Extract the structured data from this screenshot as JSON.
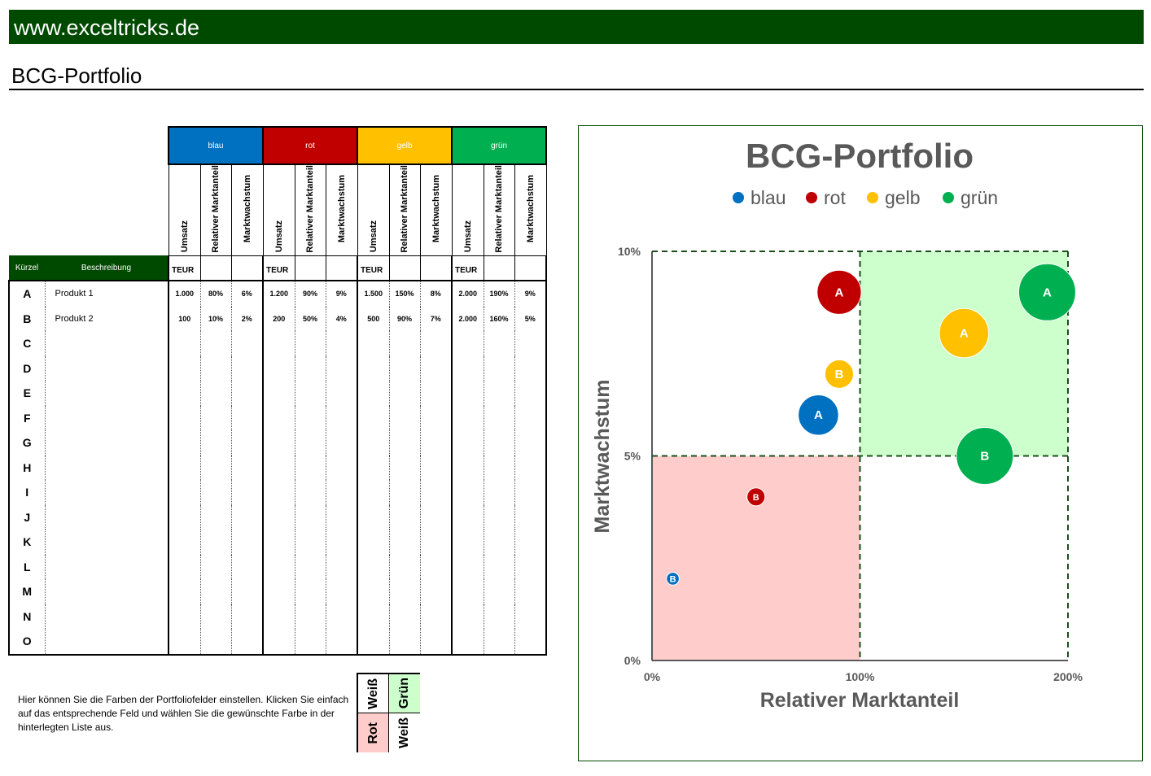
{
  "site": "www.exceltricks.de",
  "sheet_title": "BCG-Portfolio",
  "groups": [
    {
      "name": "blau",
      "color": "#0070c0"
    },
    {
      "name": "rot",
      "color": "#c00000"
    },
    {
      "name": "gelb",
      "color": "#ffc000"
    },
    {
      "name": "grün",
      "color": "#00b050"
    }
  ],
  "sub_headers": [
    "Umsatz",
    "Relativer Marktanteil",
    "Marktwachstum"
  ],
  "unit_label": "TEUR",
  "col_kuerzel": "Kürzel",
  "col_beschreibung": "Beschreibung",
  "rows": [
    {
      "kuerzel": "A",
      "beschreibung": "Produkt 1",
      "values": [
        "1.000",
        "80%",
        "6%",
        "1.200",
        "90%",
        "9%",
        "1.500",
        "150%",
        "8%",
        "2.000",
        "190%",
        "9%"
      ]
    },
    {
      "kuerzel": "B",
      "beschreibung": "Produkt 2",
      "values": [
        "100",
        "10%",
        "2%",
        "200",
        "50%",
        "4%",
        "500",
        "90%",
        "7%",
        "2.000",
        "160%",
        "5%"
      ]
    },
    {
      "kuerzel": "C",
      "beschreibung": "",
      "values": []
    },
    {
      "kuerzel": "D",
      "beschreibung": "",
      "values": []
    },
    {
      "kuerzel": "E",
      "beschreibung": "",
      "values": []
    },
    {
      "kuerzel": "F",
      "beschreibung": "",
      "values": []
    },
    {
      "kuerzel": "G",
      "beschreibung": "",
      "values": []
    },
    {
      "kuerzel": "H",
      "beschreibung": "",
      "values": []
    },
    {
      "kuerzel": "I",
      "beschreibung": "",
      "values": []
    },
    {
      "kuerzel": "J",
      "beschreibung": "",
      "values": []
    },
    {
      "kuerzel": "K",
      "beschreibung": "",
      "values": []
    },
    {
      "kuerzel": "L",
      "beschreibung": "",
      "values": []
    },
    {
      "kuerzel": "M",
      "beschreibung": "",
      "values": []
    },
    {
      "kuerzel": "N",
      "beschreibung": "",
      "values": []
    },
    {
      "kuerzel": "O",
      "beschreibung": "",
      "values": []
    }
  ],
  "hint_text": "Hier können Sie die Farben der Portfoliofelder einstellen. Klicken Sie einfach auf das entsprechende Feld und wählen Sie die gewünschte Farbe in der hinterlegten Liste aus.",
  "quadrant_picker": {
    "top_left": {
      "label": "Weiß",
      "color": "#ffffff"
    },
    "top_right": {
      "label": "Grün",
      "color": "#ccffcc"
    },
    "bottom_left": {
      "label": "Rot",
      "color": "#ffcccc"
    },
    "bottom_right": {
      "label": "Weiß",
      "color": "#ffffff"
    }
  },
  "chart_data": {
    "type": "scatter",
    "title": "BCG-Portfolio",
    "xlabel": "Relativer Marktanteil",
    "ylabel": "Marktwachstum",
    "xlim": [
      0,
      2
    ],
    "ylim": [
      0,
      0.1
    ],
    "xticks": [
      "0%",
      "100%",
      "200%"
    ],
    "yticks": [
      "0%",
      "5%",
      "10%"
    ],
    "legend_position": "top",
    "quadrant_split": {
      "x": 1,
      "y": 0.05
    },
    "quadrant_colors": {
      "top_left": "#ffffff",
      "top_right": "#ccffcc",
      "bottom_left": "#ffcccc",
      "bottom_right": "#ffffff"
    },
    "series": [
      {
        "name": "blau",
        "color": "#0070c0",
        "points": [
          {
            "label": "A",
            "x": 0.8,
            "y": 0.06,
            "size": 1000
          },
          {
            "label": "B",
            "x": 0.1,
            "y": 0.02,
            "size": 100
          }
        ]
      },
      {
        "name": "rot",
        "color": "#c00000",
        "points": [
          {
            "label": "A",
            "x": 0.9,
            "y": 0.09,
            "size": 1200
          },
          {
            "label": "B",
            "x": 0.5,
            "y": 0.04,
            "size": 200
          }
        ]
      },
      {
        "name": "gelb",
        "color": "#ffc000",
        "points": [
          {
            "label": "A",
            "x": 1.5,
            "y": 0.08,
            "size": 1500
          },
          {
            "label": "B",
            "x": 0.9,
            "y": 0.07,
            "size": 500
          }
        ]
      },
      {
        "name": "grün",
        "color": "#00b050",
        "points": [
          {
            "label": "A",
            "x": 1.9,
            "y": 0.09,
            "size": 2000
          },
          {
            "label": "B",
            "x": 1.6,
            "y": 0.05,
            "size": 2000
          }
        ]
      }
    ]
  }
}
